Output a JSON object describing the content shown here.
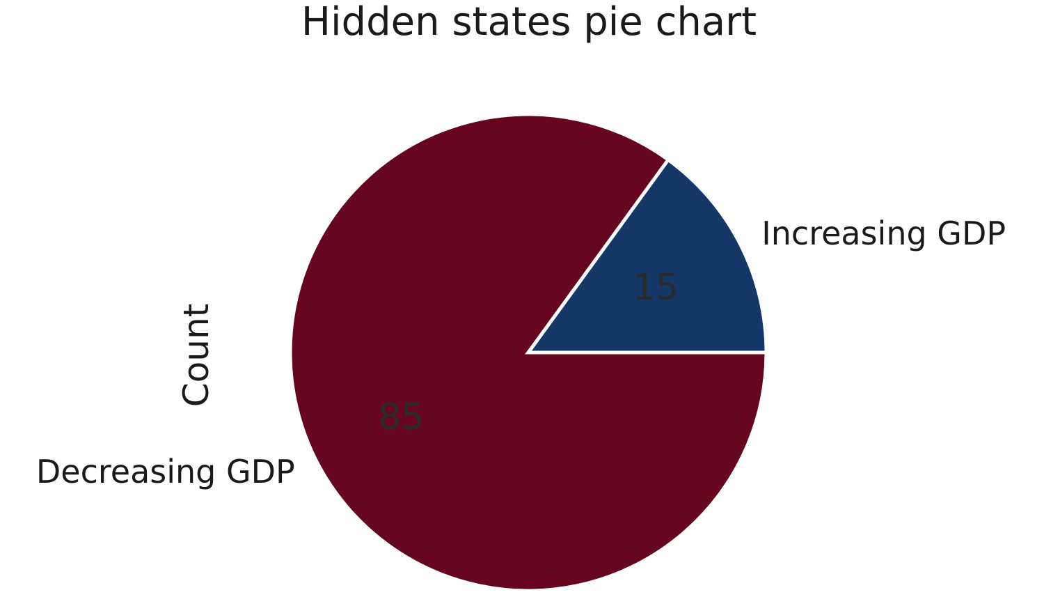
{
  "chart_data": {
    "type": "pie",
    "title": "Hidden states pie chart",
    "ylabel": "Count",
    "slices": [
      {
        "label": "Increasing GDP",
        "value": 15,
        "display": "15",
        "color": "#143767"
      },
      {
        "label": "Decreasing GDP",
        "value": 85,
        "display": "85",
        "color": "#650520"
      }
    ],
    "start_angle_deg": 0,
    "direction": "counterclockwise",
    "edge_color": "#ffffff"
  }
}
